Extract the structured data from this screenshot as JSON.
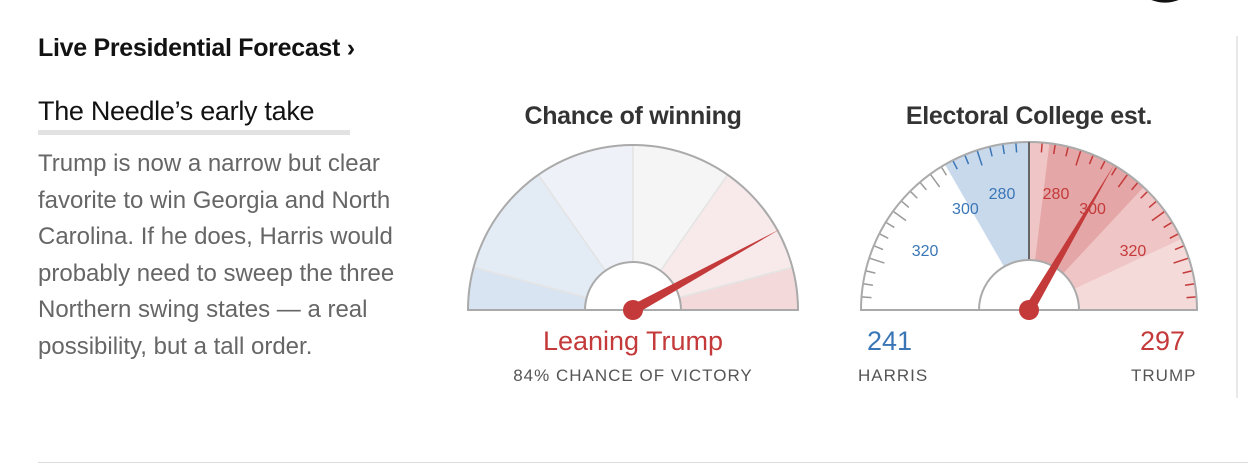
{
  "header": {
    "title": "Live Presidential Forecast ›"
  },
  "needle_take": {
    "title": "The Needle’s early take",
    "summary": "Trump is now a narrow but clear favorite to win Georgia and North Carolina. If he does, Harris would probably need to sweep the three Northern swing states — a real possibility, but a tall order."
  },
  "chance_gauge": {
    "title": "Chance of winning",
    "verdict": "Leaning Trump",
    "verdict_detail": "84% CHANCE OF VICTORY",
    "trump_win_probability": 0.84
  },
  "electoral_gauge": {
    "title": "Electoral College est.",
    "harris_votes": "241",
    "harris_label": "HARRIS",
    "trump_votes": "297",
    "trump_label": "TRUMP",
    "scale_labels_left": [
      "320",
      "300",
      "280"
    ],
    "scale_labels_right": [
      "280",
      "300",
      "320"
    ]
  },
  "colors": {
    "trump_red": "#c43a3a",
    "harris_blue": "#3a76b6",
    "neutral_gray": "#999999"
  }
}
